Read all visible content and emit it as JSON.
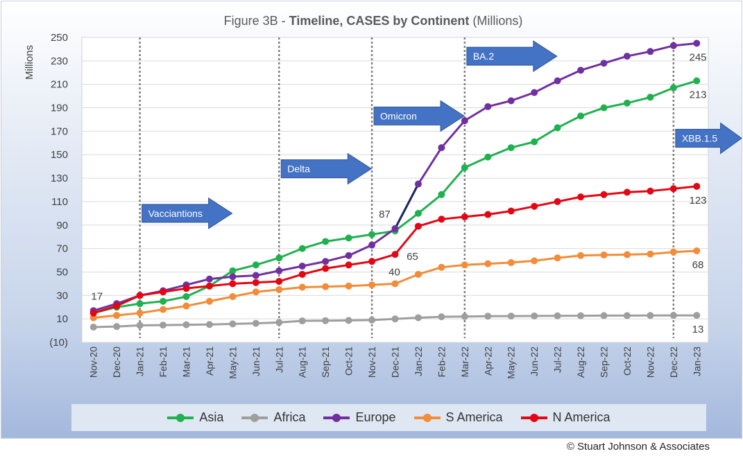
{
  "chart_data": {
    "type": "line",
    "title_prefix": "Figure 3B - ",
    "title_bold": "Timeline, CASES by Continent",
    "title_suffix": " (Millions)",
    "ylabel": "Millions",
    "ylim": [
      -10,
      250
    ],
    "yticks": [
      "(10)",
      "10",
      "30",
      "50",
      "70",
      "90",
      "110",
      "130",
      "150",
      "170",
      "190",
      "210",
      "230",
      "250"
    ],
    "ytick_values": [
      -10,
      10,
      30,
      50,
      70,
      90,
      110,
      130,
      150,
      170,
      190,
      210,
      230,
      250
    ],
    "categories": [
      "Nov-20",
      "Dec-20",
      "Jan-21",
      "Feb-21",
      "Mar-21",
      "Apr-21",
      "May-21",
      "Jun-21",
      "Jul-21",
      "Aug-21",
      "Sep-21",
      "Oct-21",
      "Nov-21",
      "Dec-21",
      "Jan-22",
      "Feb-22",
      "Mar-22",
      "Apr-22",
      "May-22",
      "Jun-22",
      "Jul-22",
      "Aug-22",
      "Sep-22",
      "Oct-22",
      "Nov-22",
      "Dec-22",
      "Jan-23"
    ],
    "grid": true,
    "series": [
      {
        "name": "Asia",
        "color": "#1fb14f",
        "values": [
          15,
          20,
          23,
          25,
          29,
          38,
          51,
          56,
          62,
          70,
          76,
          79,
          82,
          85,
          100,
          116,
          139,
          148,
          156,
          161,
          173,
          183,
          190,
          194,
          199,
          207,
          213
        ]
      },
      {
        "name": "Africa",
        "color": "#9e9e9e",
        "values": [
          3,
          3.5,
          4.5,
          4.7,
          5,
          5.2,
          5.7,
          6.2,
          7,
          8.3,
          8.5,
          8.7,
          9,
          10,
          11,
          11.8,
          12,
          12.3,
          12.4,
          12.5,
          12.6,
          12.7,
          12.8,
          12.8,
          12.9,
          13,
          13
        ]
      },
      {
        "name": "Europe",
        "color": "#7030a0",
        "values": [
          17,
          23,
          30,
          34,
          39,
          44,
          46,
          47,
          51,
          55,
          59,
          64,
          73,
          87,
          125,
          156,
          179,
          191,
          196,
          203,
          213,
          222,
          228,
          234,
          238,
          243,
          245
        ]
      },
      {
        "name": "S America",
        "color": "#f28c38",
        "values": [
          11,
          13,
          15,
          18,
          21,
          25,
          29,
          33,
          35,
          37,
          37.5,
          38,
          39,
          40,
          48,
          54,
          56,
          57,
          58,
          59.5,
          62,
          64,
          64.5,
          64.8,
          65.3,
          67,
          68
        ]
      },
      {
        "name": "N America",
        "color": "#e30613",
        "values": [
          15,
          21,
          30,
          33,
          36,
          38,
          40,
          41,
          42,
          48,
          53,
          56,
          59,
          65,
          89,
          95,
          97,
          99,
          102,
          106,
          110,
          114,
          116,
          118,
          119,
          121,
          123
        ]
      }
    ],
    "data_labels": [
      {
        "text": "17",
        "series": 2,
        "index": 0
      },
      {
        "text": "87",
        "series": 2,
        "index": 13
      },
      {
        "text": "65",
        "series": 4,
        "index": 13
      },
      {
        "text": "40",
        "series": 3,
        "index": 13
      },
      {
        "text": "245",
        "series": 2,
        "index": 26
      },
      {
        "text": "213",
        "series": 0,
        "index": 26
      },
      {
        "text": "123",
        "series": 4,
        "index": 26
      },
      {
        "text": "68",
        "series": 3,
        "index": 26
      },
      {
        "text": "13",
        "series": 1,
        "index": 26
      }
    ],
    "variant_markers": [
      {
        "label": "Vacciantions",
        "index": 2,
        "level": 100
      },
      {
        "label": "Delta",
        "index": 8,
        "level": 138
      },
      {
        "label": "Omicron",
        "index": 12,
        "level": 183
      },
      {
        "label": "BA.2",
        "index": 16,
        "level": 234
      },
      {
        "label": "XBB.1.5",
        "index": 25,
        "level": 164
      }
    ],
    "highlight_segment": {
      "series": 2,
      "from_index": 13,
      "to_index": 14,
      "color": "#1f2a5c"
    },
    "arrow_color": "#4472c4",
    "legend_position": "bottom"
  },
  "copyright": "© Stuart Johnson & Associates"
}
